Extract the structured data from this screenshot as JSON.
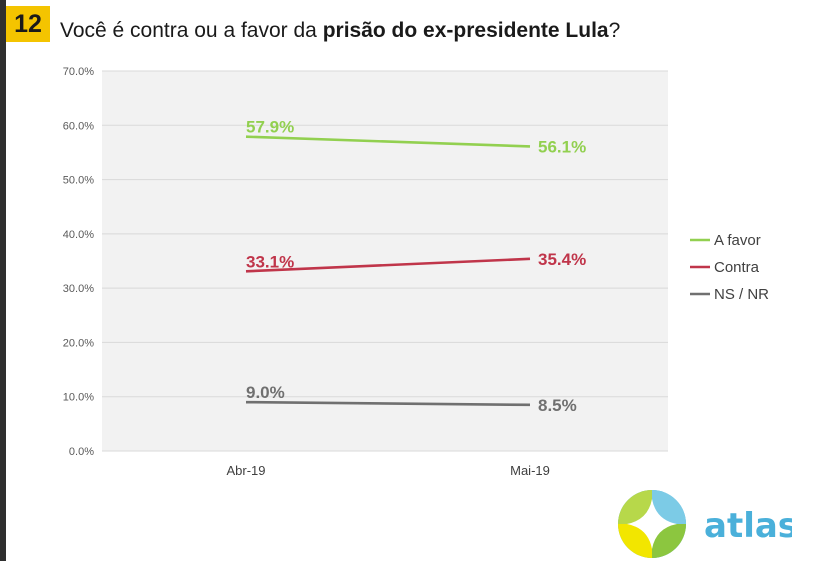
{
  "slide": {
    "number": "12",
    "title_prefix": "Você é contra ou a favor da ",
    "title_bold": "prisão do ex-presidente Lula",
    "title_suffix": "?"
  },
  "colors": {
    "a_favor": "#92d050",
    "contra": "#c0354a",
    "ns_nr": "#707070",
    "badge": "#f4c400",
    "logo_text": "#4ab0da"
  },
  "logo": {
    "text": "atlas"
  },
  "chart_data": {
    "type": "line",
    "categories": [
      "Abr-19",
      "Mai-19"
    ],
    "ylim": [
      0,
      70
    ],
    "yticks": [
      0,
      10,
      20,
      30,
      40,
      50,
      60,
      70
    ],
    "ytick_labels": [
      "0.0%",
      "10.0%",
      "20.0%",
      "30.0%",
      "40.0%",
      "50.0%",
      "60.0%",
      "70.0%"
    ],
    "grid": true,
    "legend_position": "right",
    "series": [
      {
        "name": "A favor",
        "values": [
          57.9,
          56.1
        ],
        "labels": [
          "57.9%",
          "56.1%"
        ],
        "color": "#92d050"
      },
      {
        "name": "Contra",
        "values": [
          33.1,
          35.4
        ],
        "labels": [
          "33.1%",
          "35.4%"
        ],
        "color": "#c0354a"
      },
      {
        "name": "NS / NR",
        "values": [
          9.0,
          8.5
        ],
        "labels": [
          "9.0%",
          "8.5%"
        ],
        "color": "#707070"
      }
    ]
  }
}
